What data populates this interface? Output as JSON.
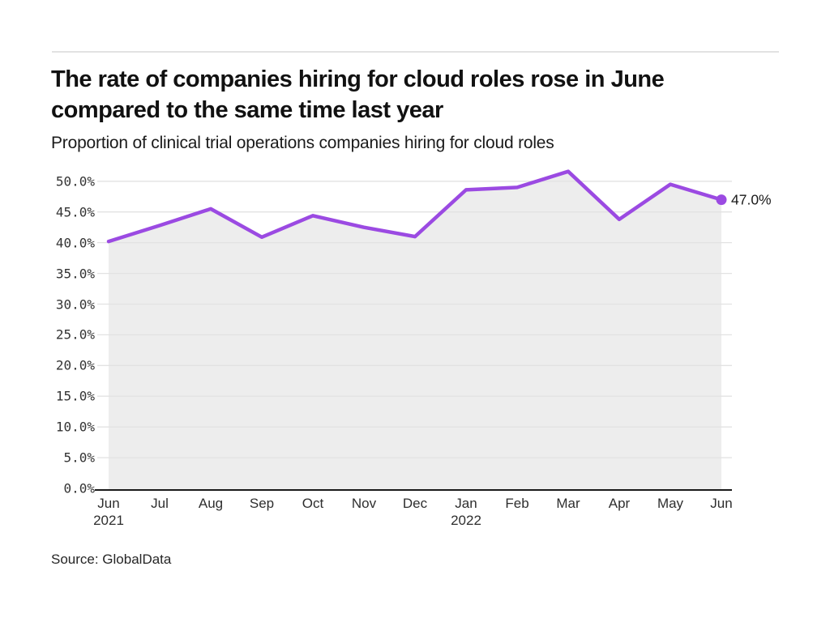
{
  "page": {
    "title_lines": [
      "The rate of companies hiring for cloud roles rose in June",
      "compared to the same time last year"
    ],
    "subtitle": "Proportion of clinical trial operations companies hiring for cloud roles",
    "source": "Source: GlobalData"
  },
  "colors": {
    "line": "#9b4ae2",
    "fill": "#ededed",
    "grid": "#e2e2e2",
    "axis": "#1a1a1a",
    "tick_text": "#333333"
  },
  "chart_data": {
    "type": "line",
    "title": "The rate of companies hiring for cloud roles rose in June compared to the same time last year",
    "subtitle": "Proportion of clinical trial operations companies hiring for cloud roles",
    "x": [
      {
        "label": "Jun",
        "sublabel": "2021"
      },
      {
        "label": "Jul"
      },
      {
        "label": "Aug"
      },
      {
        "label": "Sep"
      },
      {
        "label": "Oct"
      },
      {
        "label": "Nov"
      },
      {
        "label": "Dec"
      },
      {
        "label": "Jan",
        "sublabel": "2022"
      },
      {
        "label": "Feb"
      },
      {
        "label": "Mar"
      },
      {
        "label": "Apr"
      },
      {
        "label": "May"
      },
      {
        "label": "Jun"
      }
    ],
    "values": [
      40.2,
      42.8,
      45.5,
      40.9,
      44.4,
      42.5,
      41.0,
      48.6,
      49.0,
      51.6,
      43.8,
      49.5,
      47.0
    ],
    "unit": "%",
    "yticks": [
      "0.0%",
      "5.0%",
      "10.0%",
      "15.0%",
      "20.0%",
      "25.0%",
      "30.0%",
      "35.0%",
      "40.0%",
      "45.0%",
      "50.0%"
    ],
    "ylim": [
      0,
      50
    ],
    "grid": true,
    "legend": false,
    "area_fill": true,
    "end_label": "47.0%",
    "source": "Source: GlobalData"
  }
}
